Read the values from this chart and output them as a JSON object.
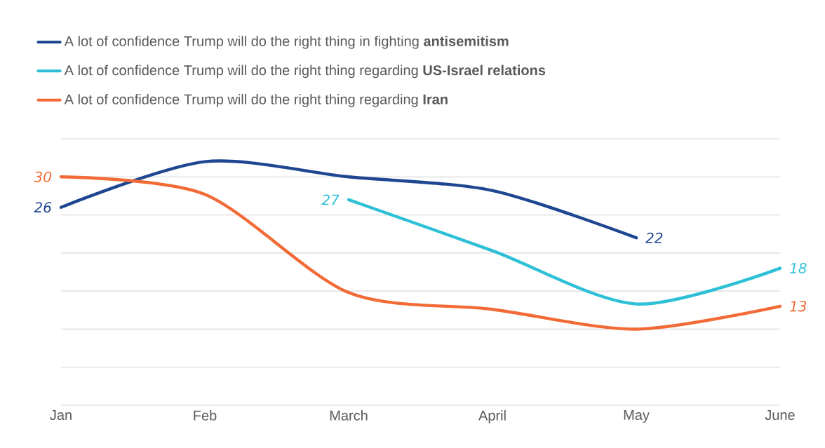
{
  "chart_data": {
    "type": "line",
    "categories": [
      "Jan",
      "Feb",
      "March",
      "April",
      "May",
      "June"
    ],
    "series": [
      {
        "name": "A lot of confidence Trump will do the right thing in fighting **antisemitism**",
        "color": "#1f4690",
        "values": [
          26,
          32,
          30,
          28.2,
          22,
          null
        ],
        "value_labels": [
          "26",
          null,
          null,
          null,
          "22",
          null
        ]
      },
      {
        "name": "A lot of confidence Trump will do the right thing regarding **US-Israel relations**",
        "color": "#2ec0d6",
        "values": [
          null,
          null,
          27,
          20.3,
          13.3,
          18
        ],
        "value_labels": [
          null,
          null,
          "27",
          null,
          null,
          "18"
        ]
      },
      {
        "name": "A lot of confidence Trump will do the right thing regarding **Iran**",
        "color": "#f26a35",
        "values": [
          30,
          27.7,
          14.8,
          12.6,
          10,
          13
        ],
        "value_labels": [
          "30",
          null,
          null,
          null,
          null,
          "13"
        ]
      }
    ],
    "ylim": [
      0,
      35
    ],
    "yticks": [
      {
        "value": 0,
        "label": null
      },
      {
        "value": 5,
        "label": null
      },
      {
        "value": 10,
        "label": null
      },
      {
        "value": 15,
        "label": null
      },
      {
        "value": 20,
        "label": null
      },
      {
        "value": 25,
        "label": null
      },
      {
        "value": 30,
        "label": null
      },
      {
        "value": 35,
        "label": null
      }
    ],
    "tick_labels": "x",
    "grid": "y",
    "legend": "top left",
    "marker": "none",
    "line_style": "solid"
  }
}
